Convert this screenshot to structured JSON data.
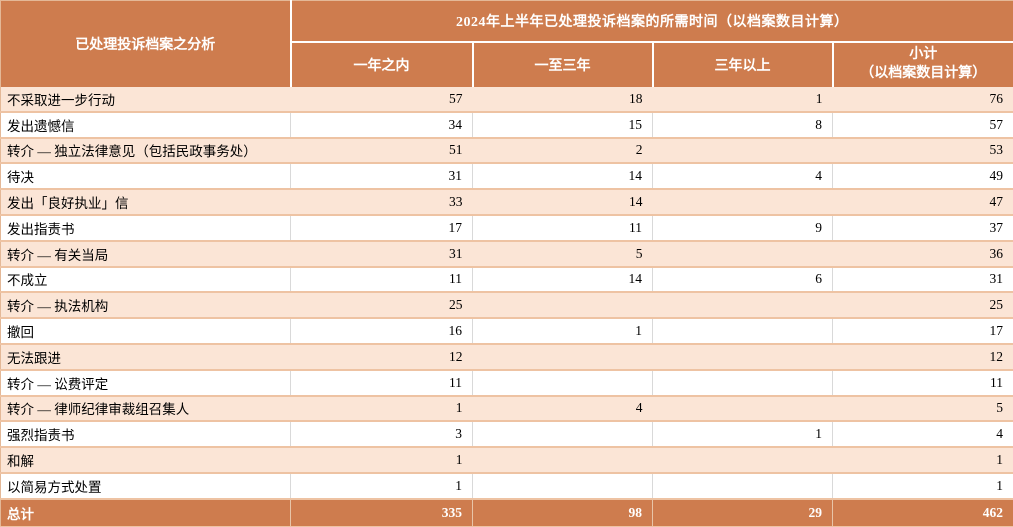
{
  "table": {
    "corner_header": "已处理投诉档案之分析",
    "main_header": "2024年上半年已处理投诉档案的所需时间（以档案数目计算）",
    "columns": [
      "一年之内",
      "一至三年",
      "三年以上"
    ],
    "subtotal_column": {
      "line1": "小计",
      "line2": "（以档案数目计算）"
    },
    "rows": [
      {
        "label": "不采取进一步行动",
        "values": [
          "57",
          "18",
          "1",
          "76"
        ]
      },
      {
        "label": "发出遗憾信",
        "values": [
          "34",
          "15",
          "8",
          "57"
        ]
      },
      {
        "label": "转介 — 独立法律意见（包括民政事务处）",
        "values": [
          "51",
          "2",
          "",
          "53"
        ]
      },
      {
        "label": "待决",
        "values": [
          "31",
          "14",
          "4",
          "49"
        ]
      },
      {
        "label": "发出「良好执业」信",
        "values": [
          "33",
          "14",
          "",
          "47"
        ]
      },
      {
        "label": "发出指责书",
        "values": [
          "17",
          "11",
          "9",
          "37"
        ]
      },
      {
        "label": "转介 — 有关当局",
        "values": [
          "31",
          "5",
          "",
          "36"
        ]
      },
      {
        "label": "不成立",
        "values": [
          "11",
          "14",
          "6",
          "31"
        ]
      },
      {
        "label": "转介 — 执法机构",
        "values": [
          "25",
          "",
          "",
          "25"
        ]
      },
      {
        "label": "撤回",
        "values": [
          "16",
          "1",
          "",
          "17"
        ]
      },
      {
        "label": "无法跟进",
        "values": [
          "12",
          "",
          "",
          "12"
        ]
      },
      {
        "label": "转介 — 讼费评定",
        "values": [
          "11",
          "",
          "",
          "11"
        ]
      },
      {
        "label": "转介 — 律师纪律审裁组召集人",
        "values": [
          "1",
          "4",
          "",
          "5"
        ]
      },
      {
        "label": "强烈指责书",
        "values": [
          "3",
          "",
          "1",
          "4"
        ]
      },
      {
        "label": "和解",
        "values": [
          "1",
          "",
          "",
          "1"
        ]
      },
      {
        "label": "以简易方式处置",
        "values": [
          "1",
          "",
          "",
          "1"
        ]
      }
    ],
    "total": {
      "label": "总计",
      "values": [
        "335",
        "98",
        "29",
        "462"
      ]
    }
  },
  "colors": {
    "accent_orange": "#ce7c4e",
    "row_peach": "#fbe5d6",
    "row_white": "#ffffff",
    "grid_tan": "#eec3a3",
    "grid_gray": "#d9d9d9",
    "header_text": "#ffffff",
    "body_text": "#000000"
  }
}
